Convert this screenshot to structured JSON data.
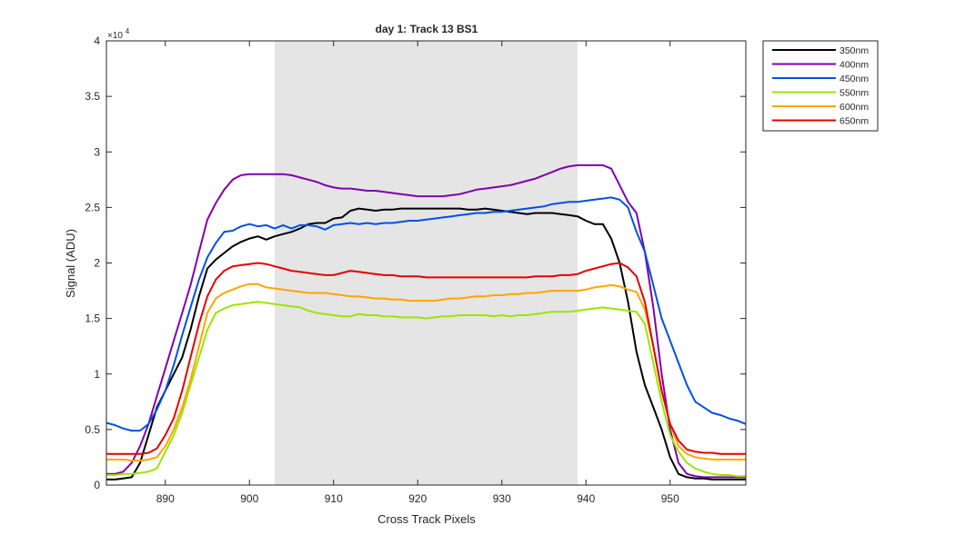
{
  "chart_data": {
    "type": "line",
    "title": "day 1: Track 13  BS1",
    "xlabel": "Cross Track Pixels",
    "ylabel": "Signal (ADU)",
    "y_exponent_label": "×10",
    "y_exponent_power": "4",
    "xlim": [
      883,
      959
    ],
    "ylim": [
      0,
      40000
    ],
    "x_ticks": [
      890,
      900,
      910,
      920,
      930,
      940,
      950
    ],
    "y_ticks": [
      0,
      5000,
      10000,
      15000,
      20000,
      25000,
      30000,
      35000,
      40000
    ],
    "x_tick_labels": [
      "890",
      "900",
      "910",
      "920",
      "930",
      "940",
      "950"
    ],
    "y_tick_labels": [
      "0",
      "0.5",
      "1",
      "1.5",
      "2",
      "2.5",
      "3",
      "3.5",
      "4"
    ],
    "shaded_region": {
      "x": [
        903,
        939
      ],
      "color": "#e5e5e5"
    },
    "grid": false,
    "legend_position": "outside-top-right",
    "x": [
      883,
      884,
      885,
      886,
      887,
      888,
      889,
      890,
      891,
      892,
      893,
      894,
      895,
      896,
      897,
      898,
      899,
      900,
      901,
      902,
      903,
      904,
      905,
      906,
      907,
      908,
      909,
      910,
      911,
      912,
      913,
      914,
      915,
      916,
      917,
      918,
      919,
      920,
      921,
      922,
      923,
      924,
      925,
      926,
      927,
      928,
      929,
      930,
      931,
      932,
      933,
      934,
      935,
      936,
      937,
      938,
      939,
      940,
      941,
      942,
      943,
      944,
      945,
      946,
      947,
      948,
      949,
      950,
      951,
      952,
      953,
      954,
      955,
      956,
      957,
      958,
      959
    ],
    "series": [
      {
        "name": "350nm",
        "color": "#000000",
        "values": [
          500,
          500,
          600,
          700,
          2000,
          4500,
          7000,
          8500,
          10000,
          11500,
          14000,
          17000,
          19500,
          20300,
          20900,
          21500,
          21900,
          22200,
          22400,
          22100,
          22400,
          22600,
          22800,
          23100,
          23500,
          23600,
          23600,
          24000,
          24100,
          24700,
          24900,
          24800,
          24700,
          24800,
          24800,
          24900,
          24900,
          24900,
          24900,
          24900,
          24900,
          24900,
          24900,
          24800,
          24800,
          24900,
          24800,
          24700,
          24600,
          24500,
          24400,
          24500,
          24500,
          24500,
          24400,
          24300,
          24200,
          23800,
          23500,
          23500,
          22200,
          20000,
          16500,
          12000,
          9000,
          7000,
          5000,
          2500,
          1000,
          700,
          600,
          600,
          500,
          500,
          500,
          500,
          500
        ]
      },
      {
        "name": "400nm",
        "color": "#8000b0",
        "values": [
          1000,
          1000,
          1200,
          2000,
          3500,
          5500,
          8000,
          10500,
          13000,
          15500,
          18000,
          21000,
          23900,
          25400,
          26600,
          27500,
          27900,
          28000,
          28000,
          28000,
          28000,
          28000,
          27900,
          27700,
          27500,
          27300,
          27000,
          26800,
          26700,
          26700,
          26600,
          26500,
          26500,
          26400,
          26300,
          26200,
          26100,
          26000,
          26000,
          26000,
          26000,
          26100,
          26200,
          26400,
          26600,
          26700,
          26800,
          26900,
          27000,
          27200,
          27400,
          27600,
          27900,
          28200,
          28500,
          28700,
          28800,
          28800,
          28800,
          28800,
          28500,
          27000,
          25500,
          24500,
          21000,
          16000,
          10000,
          5000,
          2000,
          1000,
          800,
          700,
          700,
          700,
          700,
          700,
          700
        ]
      },
      {
        "name": "450nm",
        "color": "#0050e6",
        "values": [
          5600,
          5400,
          5100,
          4900,
          4900,
          5500,
          6800,
          8500,
          10800,
          13500,
          16000,
          18500,
          20500,
          21800,
          22800,
          22900,
          23300,
          23500,
          23300,
          23400,
          23100,
          23400,
          23100,
          23400,
          23400,
          23300,
          23000,
          23400,
          23500,
          23600,
          23500,
          23600,
          23500,
          23600,
          23600,
          23700,
          23800,
          23800,
          23900,
          24000,
          24100,
          24200,
          24300,
          24400,
          24500,
          24500,
          24600,
          24600,
          24700,
          24800,
          24900,
          25000,
          25100,
          25300,
          25400,
          25500,
          25500,
          25600,
          25700,
          25800,
          25900,
          25700,
          25000,
          22800,
          21000,
          18000,
          15000,
          13000,
          11000,
          9000,
          7500,
          7000,
          6500,
          6300,
          6000,
          5800,
          5500
        ]
      },
      {
        "name": "550nm",
        "color": "#9be600",
        "values": [
          900,
          900,
          1000,
          1000,
          1100,
          1200,
          1500,
          3000,
          4500,
          6500,
          9000,
          11500,
          14000,
          15500,
          15900,
          16200,
          16300,
          16400,
          16500,
          16400,
          16300,
          16200,
          16100,
          16000,
          15700,
          15500,
          15400,
          15300,
          15200,
          15200,
          15400,
          15300,
          15300,
          15200,
          15200,
          15100,
          15100,
          15100,
          15000,
          15100,
          15200,
          15200,
          15300,
          15300,
          15300,
          15300,
          15200,
          15300,
          15200,
          15300,
          15300,
          15400,
          15500,
          15600,
          15600,
          15600,
          15700,
          15800,
          15900,
          16000,
          15900,
          15800,
          15700,
          15600,
          14500,
          11000,
          7500,
          4500,
          3000,
          2000,
          1500,
          1200,
          1000,
          900,
          900,
          800,
          800
        ]
      },
      {
        "name": "600nm",
        "color": "#ffa500",
        "values": [
          2300,
          2300,
          2300,
          2200,
          2200,
          2300,
          2500,
          3500,
          5000,
          7000,
          9500,
          12500,
          15500,
          16800,
          17300,
          17600,
          17900,
          18100,
          18100,
          17800,
          17700,
          17600,
          17500,
          17400,
          17300,
          17300,
          17300,
          17200,
          17100,
          17000,
          17000,
          16900,
          16800,
          16800,
          16700,
          16700,
          16600,
          16600,
          16600,
          16600,
          16700,
          16800,
          16800,
          16900,
          17000,
          17000,
          17100,
          17100,
          17200,
          17200,
          17300,
          17300,
          17400,
          17500,
          17500,
          17500,
          17500,
          17600,
          17800,
          17900,
          18000,
          17900,
          17600,
          17400,
          15800,
          12500,
          8500,
          5500,
          3500,
          2800,
          2500,
          2400,
          2300,
          2300,
          2300,
          2300,
          2300
        ]
      },
      {
        "name": "650nm",
        "color": "#e60000",
        "values": [
          2800,
          2800,
          2800,
          2800,
          2800,
          2900,
          3300,
          4500,
          6000,
          8500,
          11500,
          14500,
          17000,
          18500,
          19300,
          19700,
          19800,
          19900,
          20000,
          19900,
          19700,
          19500,
          19300,
          19200,
          19100,
          19000,
          18900,
          18900,
          19100,
          19300,
          19200,
          19100,
          19000,
          18900,
          18900,
          18800,
          18800,
          18800,
          18700,
          18700,
          18700,
          18700,
          18700,
          18700,
          18700,
          18700,
          18700,
          18700,
          18700,
          18700,
          18700,
          18800,
          18800,
          18800,
          18900,
          18900,
          19000,
          19300,
          19500,
          19700,
          19900,
          20000,
          19600,
          18800,
          16500,
          12500,
          8500,
          5500,
          4000,
          3200,
          3000,
          2900,
          2900,
          2800,
          2800,
          2800,
          2800
        ]
      }
    ]
  }
}
